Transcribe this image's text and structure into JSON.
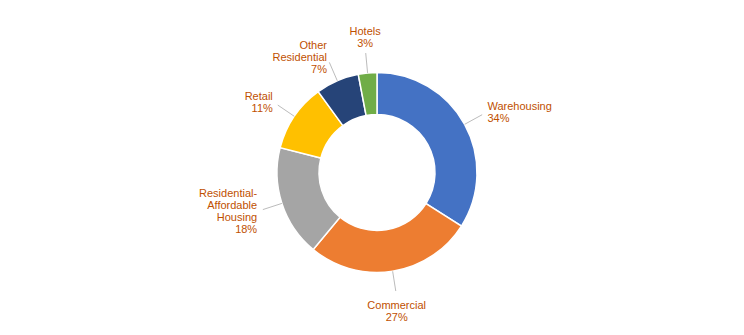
{
  "chart_data": {
    "type": "pie",
    "categories": [
      "Warehousing",
      "Commercial",
      "Residential-\nAffordable\nHousing",
      "Retail",
      "Other\nResidential",
      "Hotels"
    ],
    "values": [
      34,
      27,
      18,
      11,
      7,
      3
    ],
    "value_labels": [
      "34%",
      "27%",
      "18%",
      "11%",
      "7%",
      "3%"
    ],
    "colors": [
      "#4472C4",
      "#ED7D31",
      "#A5A5A5",
      "#FFC000",
      "#264478",
      "#70AD47"
    ],
    "data_labels": true
  }
}
